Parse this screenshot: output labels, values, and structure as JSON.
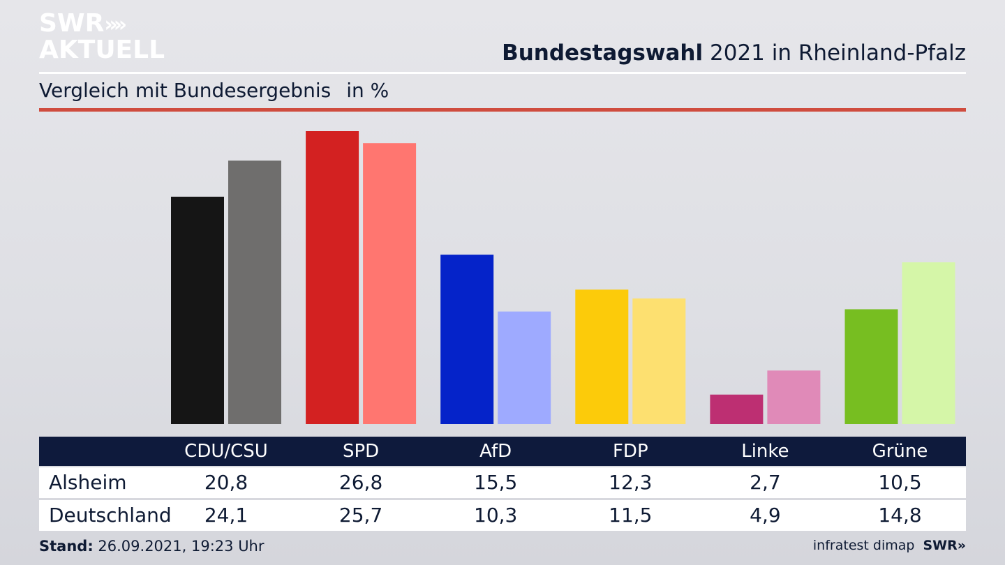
{
  "brand": {
    "logo_line1": "SWR",
    "logo_line2": "AKTUELL",
    "logo_arrows": "»",
    "footer_brand": "SWR»"
  },
  "header": {
    "title_bold": "Bundestagswahl",
    "title_rest": "2021 in Rheinland-Pfalz",
    "subtitle": "Vergleich mit Bundesergebnis",
    "unit": "in %"
  },
  "colors": {
    "title": "#0e1a33",
    "accent_rule": "#cf4c3e",
    "table_header_bg": "#0e1a3c"
  },
  "chart_data": {
    "type": "bar",
    "title": "Bundestagswahl 2021 in Rheinland-Pfalz",
    "subtitle": "Vergleich mit Bundesergebnis",
    "ylabel": "in %",
    "ylim": [
      0,
      30
    ],
    "grid": false,
    "categories": [
      "CDU/CSU",
      "SPD",
      "AfD",
      "FDP",
      "Linke",
      "Grüne"
    ],
    "series": [
      {
        "name": "Alsheim",
        "values": [
          20.8,
          26.8,
          15.5,
          12.3,
          2.7,
          10.5
        ],
        "labels": [
          "20,8",
          "26,8",
          "15,5",
          "12,3",
          "2,7",
          "10,5"
        ],
        "colors": [
          "#151515",
          "#d32121",
          "#0523c9",
          "#fccb0a",
          "#bd2f72",
          "#77be21"
        ]
      },
      {
        "name": "Deutschland",
        "values": [
          24.1,
          25.7,
          10.3,
          11.5,
          4.9,
          14.8
        ],
        "labels": [
          "24,1",
          "25,7",
          "10,3",
          "11,5",
          "4,9",
          "14,8"
        ],
        "colors": [
          "#6f6e6d",
          "#ff7670",
          "#9eaaff",
          "#fde070",
          "#e08ab8",
          "#d5f6a8"
        ]
      }
    ]
  },
  "footer": {
    "stand_label": "Stand:",
    "stand_value": "26.09.2021, 19:23 Uhr",
    "source": "infratest dimap"
  }
}
